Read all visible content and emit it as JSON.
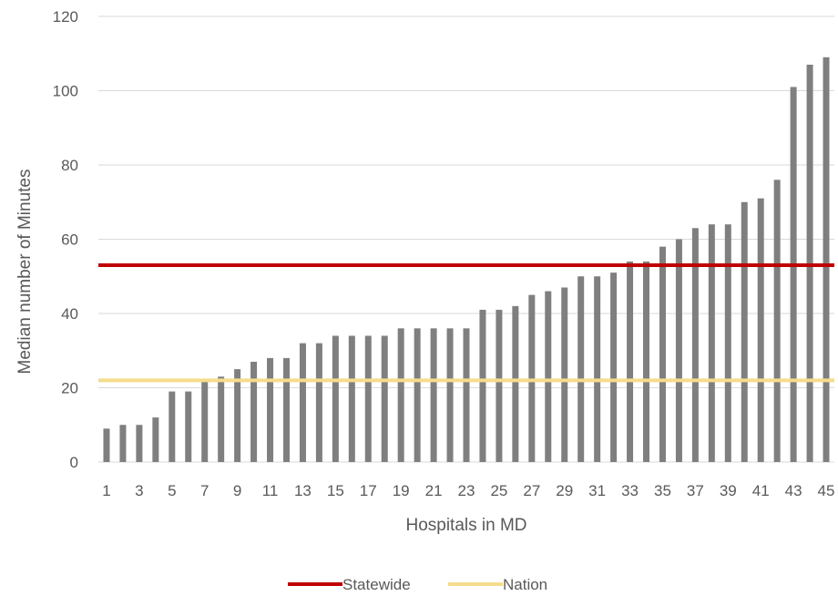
{
  "chart_data": {
    "type": "bar",
    "title": "",
    "xlabel": "Hospitals in MD",
    "ylabel": "Median number of Minutes",
    "ylim": [
      0,
      120
    ],
    "yticks": [
      0,
      20,
      40,
      60,
      80,
      100,
      120
    ],
    "grid": true,
    "legend_position": "bottom",
    "categories": [
      1,
      2,
      3,
      4,
      5,
      6,
      7,
      8,
      9,
      10,
      11,
      12,
      13,
      14,
      15,
      16,
      17,
      18,
      19,
      20,
      21,
      22,
      23,
      24,
      25,
      26,
      27,
      28,
      29,
      30,
      31,
      32,
      33,
      34,
      35,
      36,
      37,
      38,
      39,
      40,
      41,
      42,
      43,
      44,
      45
    ],
    "x_tick_labels": [
      "1",
      "3",
      "5",
      "7",
      "9",
      "11",
      "13",
      "15",
      "17",
      "19",
      "21",
      "23",
      "25",
      "27",
      "29",
      "31",
      "33",
      "35",
      "37",
      "39",
      "41",
      "43",
      "45"
    ],
    "values": [
      9,
      10,
      10,
      12,
      19,
      19,
      22,
      23,
      25,
      27,
      28,
      28,
      32,
      32,
      34,
      34,
      34,
      34,
      36,
      36,
      36,
      36,
      36,
      41,
      41,
      42,
      45,
      46,
      47,
      50,
      50,
      51,
      54,
      54,
      58,
      60,
      63,
      64,
      64,
      70,
      71,
      76,
      101,
      107,
      109
    ],
    "bar_color": "#7f7f7f",
    "reference_lines": [
      {
        "name": "Statewide",
        "value": 53,
        "color": "#c00000"
      },
      {
        "name": "Nation",
        "value": 22,
        "color": "#f5dc8c"
      }
    ]
  }
}
